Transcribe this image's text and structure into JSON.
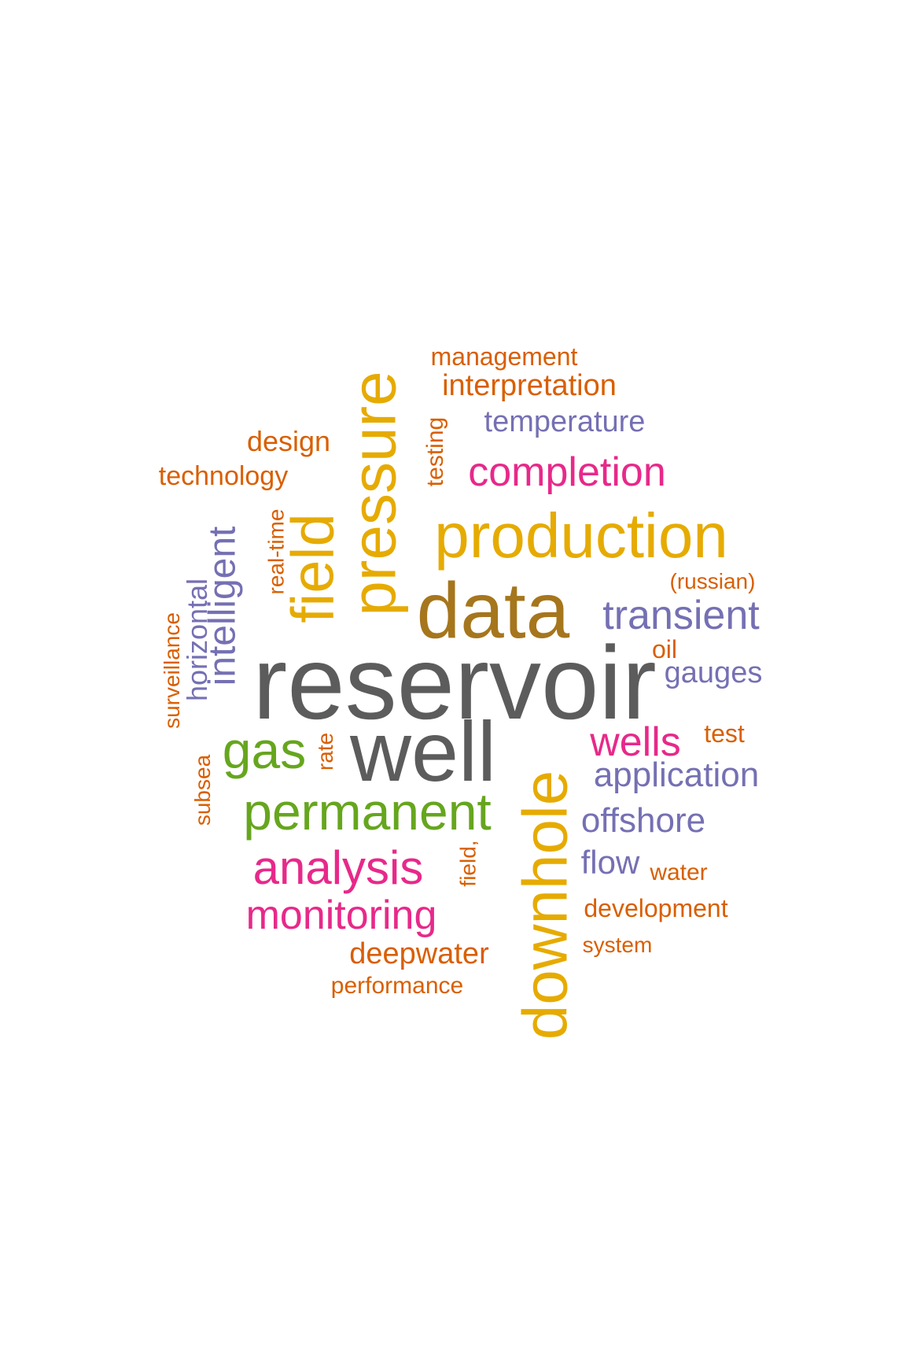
{
  "words": [
    {
      "text": "reservoir",
      "color": "#5c5c5c",
      "rotated": false
    },
    {
      "text": "well",
      "color": "#5c5c5c",
      "rotated": false
    },
    {
      "text": "data",
      "color": "#a6761d",
      "rotated": false
    },
    {
      "text": "production",
      "color": "#e6ab02",
      "rotated": false
    },
    {
      "text": "pressure",
      "color": "#e6ab02",
      "rotated": true
    },
    {
      "text": "downhole",
      "color": "#e6ab02",
      "rotated": true
    },
    {
      "text": "field",
      "color": "#e6ab02",
      "rotated": true
    },
    {
      "text": "permanent",
      "color": "#66a61e",
      "rotated": false
    },
    {
      "text": "gas",
      "color": "#66a61e",
      "rotated": false
    },
    {
      "text": "analysis",
      "color": "#e7298a",
      "rotated": false
    },
    {
      "text": "monitoring",
      "color": "#e7298a",
      "rotated": false
    },
    {
      "text": "completion",
      "color": "#e7298a",
      "rotated": false
    },
    {
      "text": "wells",
      "color": "#e7298a",
      "rotated": false
    },
    {
      "text": "transient",
      "color": "#7570b3",
      "rotated": false
    },
    {
      "text": "application",
      "color": "#7570b3",
      "rotated": false
    },
    {
      "text": "offshore",
      "color": "#7570b3",
      "rotated": false
    },
    {
      "text": "gauges",
      "color": "#7570b3",
      "rotated": false
    },
    {
      "text": "temperature",
      "color": "#7570b3",
      "rotated": false
    },
    {
      "text": "flow",
      "color": "#7570b3",
      "rotated": false
    },
    {
      "text": "intelligent",
      "color": "#7570b3",
      "rotated": true
    },
    {
      "text": "horizontal",
      "color": "#7570b3",
      "rotated": true
    },
    {
      "text": "management",
      "color": "#d95f02",
      "rotated": false
    },
    {
      "text": "interpretation",
      "color": "#d95f02",
      "rotated": false
    },
    {
      "text": "design",
      "color": "#d95f02",
      "rotated": false
    },
    {
      "text": "technology",
      "color": "#d95f02",
      "rotated": false
    },
    {
      "text": "testing",
      "color": "#d95f02",
      "rotated": true
    },
    {
      "text": "real-time",
      "color": "#d95f02",
      "rotated": true
    },
    {
      "text": "surveillance",
      "color": "#d95f02",
      "rotated": true
    },
    {
      "text": "subsea",
      "color": "#d95f02",
      "rotated": true
    },
    {
      "text": "rate",
      "color": "#d95f02",
      "rotated": true
    },
    {
      "text": "field,",
      "color": "#d95f02",
      "rotated": true
    },
    {
      "text": "(russian)",
      "color": "#d95f02",
      "rotated": false
    },
    {
      "text": "oil",
      "color": "#d95f02",
      "rotated": false
    },
    {
      "text": "test",
      "color": "#d95f02",
      "rotated": false
    },
    {
      "text": "water",
      "color": "#d95f02",
      "rotated": false
    },
    {
      "text": "development",
      "color": "#d95f02",
      "rotated": false
    },
    {
      "text": "system",
      "color": "#d95f02",
      "rotated": false
    },
    {
      "text": "deepwater",
      "color": "#d95f02",
      "rotated": false
    },
    {
      "text": "performance",
      "color": "#d95f02",
      "rotated": false
    }
  ]
}
